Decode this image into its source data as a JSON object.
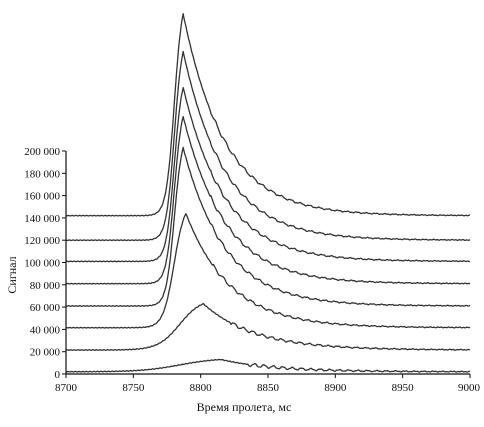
{
  "chart_data": {
    "type": "line",
    "xlabel": "Время пролета, мс",
    "ylabel": "Сигнал",
    "xlim": [
      8700,
      9000
    ],
    "ylim": [
      0,
      200000
    ],
    "x_ticks": [
      8700,
      8750,
      8800,
      8850,
      8900,
      8950,
      9000
    ],
    "x_tick_labels": [
      "8700",
      "8750",
      "8800",
      "8850",
      "8900",
      "8950",
      "9000"
    ],
    "y_ticks": [
      0,
      20000,
      40000,
      60000,
      80000,
      100000,
      120000,
      140000,
      160000,
      180000,
      200000
    ],
    "y_tick_labels": [
      "0",
      "20 000",
      "40 000",
      "60 000",
      "80 000",
      "100 000",
      "120 000",
      "140 000",
      "160 000",
      "180 000",
      "200 000"
    ],
    "grid": false,
    "legend": "none",
    "line_color": "#333333",
    "series": [
      {
        "baseline": 2000,
        "peak": 13000,
        "peak_x": 8815,
        "rise_width": 14,
        "decay": 40
      },
      {
        "baseline": 21500,
        "peak": 63000,
        "peak_x": 8802,
        "rise_width": 8,
        "decay": 38
      },
      {
        "baseline": 41500,
        "peak": 144000,
        "peak_x": 8789,
        "rise_width": 4,
        "decay": 33
      },
      {
        "baseline": 61000,
        "peak": 203000,
        "peak_x": 8787,
        "rise_width": 3,
        "decay": 31
      },
      {
        "baseline": 81000,
        "peak": 231000,
        "peak_x": 8787,
        "rise_width": 3,
        "decay": 31
      },
      {
        "baseline": 101000,
        "peak": 257000,
        "peak_x": 8787,
        "rise_width": 3,
        "decay": 31
      },
      {
        "baseline": 120000,
        "peak": 289000,
        "peak_x": 8787,
        "rise_width": 3,
        "decay": 31
      },
      {
        "baseline": 142000,
        "peak": 323000,
        "peak_x": 8787,
        "rise_width": 3,
        "decay": 31
      }
    ]
  }
}
